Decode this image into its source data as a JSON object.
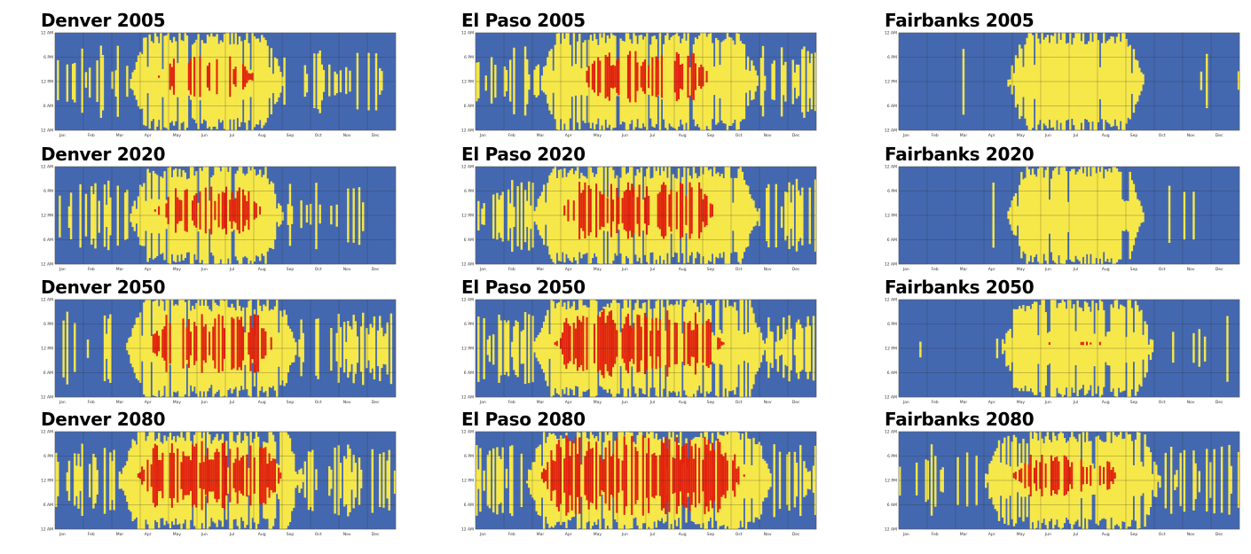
{
  "chart_data": [
    {
      "type": "heatmap",
      "title": "Denver 2005",
      "y_tick_labels": [
        "12 AM",
        "6 PM",
        "12 PM",
        "6 AM",
        "12 AM"
      ],
      "x_tick_labels": [
        "Jan",
        "Feb",
        "Mar",
        "Apr",
        "May",
        "Jun",
        "Jul",
        "Aug",
        "Sep",
        "Oct",
        "Nov",
        "Dec"
      ],
      "colors": {
        "cold": "#4468b0",
        "warm": "#f7e84a",
        "hot": "#e2240f"
      },
      "warm_season": [
        0.27,
        0.62
      ],
      "hot_season": [
        0.35,
        0.54
      ],
      "warm_density": 0.22,
      "hot_density": 0.38
    },
    {
      "type": "heatmap",
      "title": "El Paso 2005",
      "y_tick_labels": [
        "12 AM",
        "6 PM",
        "12 PM",
        "6 AM",
        "12 AM"
      ],
      "x_tick_labels": [
        "Jan",
        "Feb",
        "Mar",
        "Apr",
        "May",
        "Jun",
        "Jul",
        "Aug",
        "Sep",
        "Oct",
        "Nov",
        "Dec"
      ],
      "colors": {
        "cold": "#4468b0",
        "warm": "#f7e84a",
        "hot": "#e2240f"
      },
      "warm_season": [
        0.24,
        0.78
      ],
      "hot_season": [
        0.36,
        0.64
      ],
      "warm_density": 0.42,
      "hot_density": 0.48
    },
    {
      "type": "heatmap",
      "title": "Fairbanks 2005",
      "y_tick_labels": [
        "12 AM",
        "6 PM",
        "12 PM",
        "6 AM",
        "12 AM"
      ],
      "x_tick_labels": [
        "Jan",
        "Feb",
        "Mar",
        "Apr",
        "May",
        "Jun",
        "Jul",
        "Aug",
        "Sep",
        "Oct",
        "Nov",
        "Dec"
      ],
      "colors": {
        "cold": "#4468b0",
        "warm": "#f7e84a",
        "hot": "#e2240f"
      },
      "warm_season": [
        0.37,
        0.67
      ],
      "hot_season": [
        0,
        0
      ],
      "warm_density": 0.02,
      "hot_density": 0
    },
    {
      "type": "heatmap",
      "title": "Denver 2020",
      "y_tick_labels": [
        "12 AM",
        "6 PM",
        "12 PM",
        "6 AM",
        "12 AM"
      ],
      "x_tick_labels": [
        "Jan",
        "Feb",
        "Mar",
        "Apr",
        "May",
        "Jun",
        "Jul",
        "Aug",
        "Sep",
        "Oct",
        "Nov",
        "Dec"
      ],
      "colors": {
        "cold": "#4468b0",
        "warm": "#f7e84a",
        "hot": "#e2240f"
      },
      "warm_season": [
        0.27,
        0.62
      ],
      "hot_season": [
        0.34,
        0.56
      ],
      "warm_density": 0.24,
      "hot_density": 0.45
    },
    {
      "type": "heatmap",
      "title": "El Paso 2020",
      "y_tick_labels": [
        "12 AM",
        "6 PM",
        "12 PM",
        "6 AM",
        "12 AM"
      ],
      "x_tick_labels": [
        "Jan",
        "Feb",
        "Mar",
        "Apr",
        "May",
        "Jun",
        "Jul",
        "Aug",
        "Sep",
        "Oct",
        "Nov",
        "Dec"
      ],
      "colors": {
        "cold": "#4468b0",
        "warm": "#f7e84a",
        "hot": "#e2240f"
      },
      "warm_season": [
        0.22,
        0.78
      ],
      "hot_season": [
        0.3,
        0.66
      ],
      "warm_density": 0.45,
      "hot_density": 0.55
    },
    {
      "type": "heatmap",
      "title": "Fairbanks 2020",
      "y_tick_labels": [
        "12 AM",
        "6 PM",
        "12 PM",
        "6 AM",
        "12 AM"
      ],
      "x_tick_labels": [
        "Jan",
        "Feb",
        "Mar",
        "Apr",
        "May",
        "Jun",
        "Jul",
        "Aug",
        "Sep",
        "Oct",
        "Nov",
        "Dec"
      ],
      "colors": {
        "cold": "#4468b0",
        "warm": "#f7e84a",
        "hot": "#e2240f"
      },
      "warm_season": [
        0.37,
        0.67
      ],
      "hot_season": [
        0,
        0
      ],
      "warm_density": 0.02,
      "hot_density": 0
    },
    {
      "type": "heatmap",
      "title": "Denver 2050",
      "y_tick_labels": [
        "12 AM",
        "6 PM",
        "12 PM",
        "6 AM",
        "12 AM"
      ],
      "x_tick_labels": [
        "Jan",
        "Feb",
        "Mar",
        "Apr",
        "May",
        "Jun",
        "Jul",
        "Aug",
        "Sep",
        "Oct",
        "Nov",
        "Dec"
      ],
      "colors": {
        "cold": "#4468b0",
        "warm": "#f7e84a",
        "hot": "#e2240f"
      },
      "warm_season": [
        0.26,
        0.66
      ],
      "hot_season": [
        0.32,
        0.6
      ],
      "warm_density": 0.3,
      "hot_density": 0.55
    },
    {
      "type": "heatmap",
      "title": "El Paso 2050",
      "y_tick_labels": [
        "12 AM",
        "6 PM",
        "12 PM",
        "6 AM",
        "12 AM"
      ],
      "x_tick_labels": [
        "Jan",
        "Feb",
        "Mar",
        "Apr",
        "May",
        "Jun",
        "Jul",
        "Aug",
        "Sep",
        "Oct",
        "Nov",
        "Dec"
      ],
      "colors": {
        "cold": "#4468b0",
        "warm": "#f7e84a",
        "hot": "#e2240f"
      },
      "warm_season": [
        0.22,
        0.8
      ],
      "hot_season": [
        0.28,
        0.68
      ],
      "warm_density": 0.48,
      "hot_density": 0.65
    },
    {
      "type": "heatmap",
      "title": "Fairbanks 2050",
      "y_tick_labels": [
        "12 AM",
        "6 PM",
        "12 PM",
        "6 AM",
        "12 AM"
      ],
      "x_tick_labels": [
        "Jan",
        "Feb",
        "Mar",
        "Apr",
        "May",
        "Jun",
        "Jul",
        "Aug",
        "Sep",
        "Oct",
        "Nov",
        "Dec"
      ],
      "colors": {
        "cold": "#4468b0",
        "warm": "#f7e84a",
        "hot": "#e2240f"
      },
      "warm_season": [
        0.35,
        0.7
      ],
      "hot_season": [
        0.45,
        0.58
      ],
      "warm_density": 0.05,
      "hot_density": 0.04
    },
    {
      "type": "heatmap",
      "title": "Denver 2080",
      "y_tick_labels": [
        "12 AM",
        "6 PM",
        "12 PM",
        "6 AM",
        "12 AM"
      ],
      "x_tick_labels": [
        "Jan",
        "Feb",
        "Mar",
        "Apr",
        "May",
        "Jun",
        "Jul",
        "Aug",
        "Sep",
        "Oct",
        "Nov",
        "Dec"
      ],
      "colors": {
        "cold": "#4468b0",
        "warm": "#f7e84a",
        "hot": "#e2240f"
      },
      "warm_season": [
        0.24,
        0.68
      ],
      "hot_season": [
        0.29,
        0.62
      ],
      "warm_density": 0.35,
      "hot_density": 0.65
    },
    {
      "type": "heatmap",
      "title": "El Paso 2080",
      "y_tick_labels": [
        "12 AM",
        "6 PM",
        "12 PM",
        "6 AM",
        "12 AM"
      ],
      "x_tick_labels": [
        "Jan",
        "Feb",
        "Mar",
        "Apr",
        "May",
        "Jun",
        "Jul",
        "Aug",
        "Sep",
        "Oct",
        "Nov",
        "Dec"
      ],
      "colors": {
        "cold": "#4468b0",
        "warm": "#f7e84a",
        "hot": "#e2240f"
      },
      "warm_season": [
        0.2,
        0.82
      ],
      "hot_season": [
        0.24,
        0.74
      ],
      "warm_density": 0.5,
      "hot_density": 0.75
    },
    {
      "type": "heatmap",
      "title": "Fairbanks 2080",
      "y_tick_labels": [
        "12 AM",
        "6 PM",
        "12 PM",
        "6 AM",
        "12 AM"
      ],
      "x_tick_labels": [
        "Jan",
        "Feb",
        "Mar",
        "Apr",
        "May",
        "Jun",
        "Jul",
        "Aug",
        "Sep",
        "Oct",
        "Nov",
        "Dec"
      ],
      "colors": {
        "cold": "#4468b0",
        "warm": "#f7e84a",
        "hot": "#e2240f"
      },
      "warm_season": [
        0.3,
        0.72
      ],
      "hot_season": [
        0.38,
        0.6
      ],
      "warm_density": 0.2,
      "hot_density": 0.4
    }
  ]
}
